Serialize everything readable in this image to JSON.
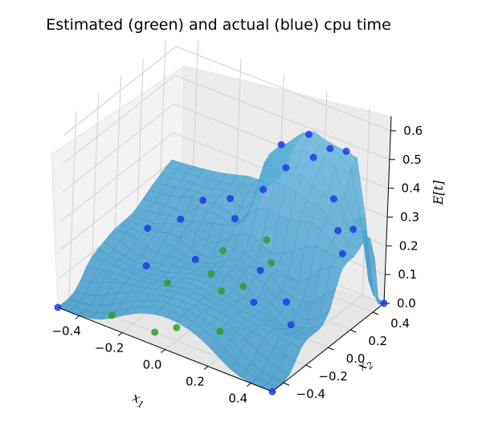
{
  "chart_data": {
    "type": "surface3d-scatter",
    "title": "Estimated (green) and actual (blue) cpu time",
    "xlabel": "x",
    "xlabel_sub": "1",
    "ylabel": "x",
    "ylabel_sub": "2",
    "zlabel": "E[t]",
    "xlim": [
      -0.5,
      0.5
    ],
    "ylim": [
      -0.5,
      0.5
    ],
    "zlim": [
      0.0,
      0.65
    ],
    "x_ticks": [
      "−0.4",
      "−0.2",
      "0.0",
      "0.2",
      "0.4"
    ],
    "y_ticks": [
      "−0.4",
      "−0.2",
      "0.0",
      "0.2",
      "0.4"
    ],
    "z_ticks": [
      "0.0",
      "0.1",
      "0.2",
      "0.3",
      "0.4",
      "0.5",
      "0.6"
    ],
    "grid": true,
    "surface_color": "#5aa7d4",
    "actual_color": "#1f3de0",
    "estimated_color": "#2ca02c",
    "series": [
      {
        "name": "actual",
        "points": [
          {
            "x": -0.5,
            "y": -0.5,
            "z": 0.0
          },
          {
            "x": 0.5,
            "y": -0.5,
            "z": 0.0
          },
          {
            "x": 0.5,
            "y": 0.5,
            "z": 0.0
          },
          {
            "x": -0.4,
            "y": 0.1,
            "z": 0.12
          },
          {
            "x": -0.3,
            "y": 0.2,
            "z": 0.15
          },
          {
            "x": -0.25,
            "y": 0.3,
            "z": 0.2
          },
          {
            "x": -0.15,
            "y": 0.35,
            "z": 0.22
          },
          {
            "x": -0.1,
            "y": 0.3,
            "z": 0.18
          },
          {
            "x": -0.05,
            "y": 0.45,
            "z": 0.25
          },
          {
            "x": 0.05,
            "y": 0.4,
            "z": 0.45
          },
          {
            "x": 0.1,
            "y": 0.35,
            "z": 0.4
          },
          {
            "x": 0.15,
            "y": 0.45,
            "z": 0.5
          },
          {
            "x": 0.2,
            "y": 0.4,
            "z": 0.45
          },
          {
            "x": 0.25,
            "y": 0.45,
            "z": 0.48
          },
          {
            "x": 0.3,
            "y": 0.5,
            "z": 0.47
          },
          {
            "x": 0.35,
            "y": 0.3,
            "z": 0.38
          },
          {
            "x": 0.4,
            "y": 0.25,
            "z": 0.3
          },
          {
            "x": 0.42,
            "y": 0.35,
            "z": 0.28
          },
          {
            "x": 0.45,
            "y": 0.2,
            "z": 0.25
          },
          {
            "x": 0.3,
            "y": 0.0,
            "z": 0.1
          },
          {
            "x": 0.35,
            "y": -0.05,
            "z": 0.05
          },
          {
            "x": 0.2,
            "y": -0.1,
            "z": 0.1
          },
          {
            "x": 0.15,
            "y": 0.05,
            "z": 0.15
          },
          {
            "x": -0.15,
            "y": 0.05,
            "z": 0.1
          },
          {
            "x": -0.3,
            "y": -0.1,
            "z": 0.08
          }
        ]
      },
      {
        "name": "estimated",
        "points": [
          {
            "x": -0.3,
            "y": -0.4,
            "z": 0.0
          },
          {
            "x": -0.1,
            "y": -0.4,
            "z": 0.0
          },
          {
            "x": -0.05,
            "y": -0.3,
            "z": 0.0
          },
          {
            "x": 0.1,
            "y": -0.2,
            "z": 0.0
          },
          {
            "x": -0.2,
            "y": -0.1,
            "z": 0.05
          },
          {
            "x": -0.1,
            "y": 0.1,
            "z": 0.05
          },
          {
            "x": 0.0,
            "y": 0.0,
            "z": 0.05
          },
          {
            "x": 0.05,
            "y": 0.1,
            "z": 0.05
          },
          {
            "x": 0.1,
            "y": 0.25,
            "z": 0.1
          },
          {
            "x": 0.05,
            "y": 0.3,
            "z": 0.15
          },
          {
            "x": -0.1,
            "y": 0.2,
            "z": 0.1
          }
        ]
      }
    ]
  }
}
